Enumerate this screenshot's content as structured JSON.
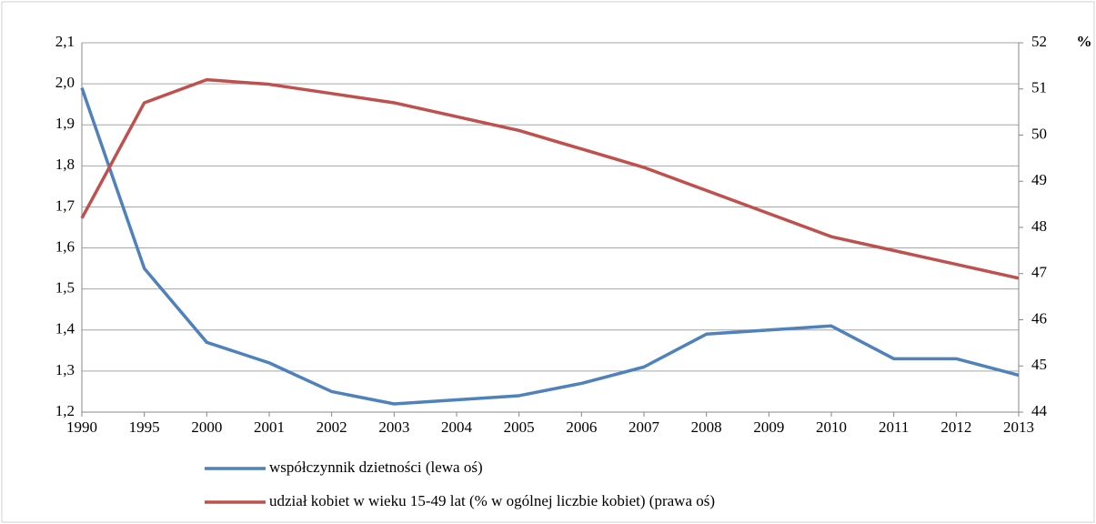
{
  "chart_data": {
    "type": "line",
    "categories": [
      "1990",
      "1995",
      "2000",
      "2001",
      "2002",
      "2003",
      "2004",
      "2005",
      "2006",
      "2007",
      "2008",
      "2009",
      "2010",
      "2011",
      "2012",
      "2013"
    ],
    "series": [
      {
        "name": "współczynnik dzietności (lewa oś)",
        "color": "#4f81bd",
        "values": [
          1.99,
          1.55,
          1.37,
          1.32,
          1.25,
          1.22,
          1.23,
          1.24,
          1.27,
          1.31,
          1.39,
          1.4,
          1.41,
          1.33,
          1.33,
          1.29
        ]
      },
      {
        "name": "udział kobiet w wieku 15-49 lat (% w ogólnej liczbie kobiet) (prawa oś)",
        "color": "#c0504d",
        "axis": "y2",
        "values": [
          48.2,
          50.7,
          51.2,
          51.1,
          50.9,
          50.7,
          50.4,
          50.1,
          49.7,
          49.3,
          48.8,
          48.3,
          47.8,
          47.5,
          47.2,
          46.9
        ]
      }
    ],
    "ylim": [
      1.2,
      2.1
    ],
    "yticks": [
      {
        "value": 1.2,
        "label": "1,2"
      },
      {
        "value": 1.3,
        "label": "1,3"
      },
      {
        "value": 1.4,
        "label": "1,4"
      },
      {
        "value": 1.5,
        "label": "1,5"
      },
      {
        "value": 1.6,
        "label": "1,6"
      },
      {
        "value": 1.7,
        "label": "1,7"
      },
      {
        "value": 1.8,
        "label": "1,8"
      },
      {
        "value": 1.9,
        "label": "1,9"
      },
      {
        "value": 2.0,
        "label": "2,0"
      },
      {
        "value": 2.1,
        "label": "2,1"
      }
    ],
    "y2lim": [
      44,
      52
    ],
    "y2ticks": [
      44,
      45,
      46,
      47,
      48,
      49,
      50,
      51,
      52
    ],
    "y2label": "%",
    "grid": true,
    "legend": "bottom"
  }
}
